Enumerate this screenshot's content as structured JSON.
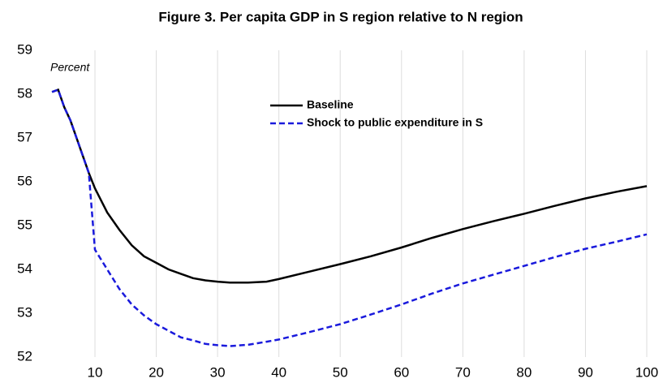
{
  "chart_data": {
    "type": "line",
    "title": "Figure 3. Per capita GDP in S region relative to N region",
    "y_label": "Percent",
    "x": [
      3,
      4,
      5,
      6,
      7,
      8,
      9,
      10,
      12,
      14,
      16,
      18,
      20,
      22,
      24,
      26,
      28,
      30,
      32,
      35,
      38,
      40,
      45,
      50,
      55,
      60,
      65,
      70,
      75,
      80,
      85,
      90,
      95,
      100
    ],
    "series": [
      {
        "name": "Baseline",
        "color": "#000000",
        "dash": false,
        "values": [
          58.05,
          58.1,
          57.7,
          57.4,
          57.0,
          56.6,
          56.2,
          55.85,
          55.3,
          54.9,
          54.55,
          54.3,
          54.15,
          54.0,
          53.9,
          53.8,
          53.75,
          53.72,
          53.7,
          53.7,
          53.72,
          53.78,
          53.95,
          54.12,
          54.3,
          54.5,
          54.72,
          54.92,
          55.1,
          55.27,
          55.45,
          55.62,
          55.77,
          55.9
        ]
      },
      {
        "name": "Shock to public expenditure in S",
        "color": "#1a1adc",
        "dash": true,
        "values": [
          58.05,
          58.1,
          57.7,
          57.4,
          57.0,
          56.6,
          56.2,
          54.45,
          54.0,
          53.55,
          53.2,
          52.95,
          52.75,
          52.6,
          52.45,
          52.38,
          52.3,
          52.27,
          52.25,
          52.28,
          52.35,
          52.4,
          52.57,
          52.75,
          52.97,
          53.2,
          53.45,
          53.68,
          53.88,
          54.08,
          54.28,
          54.47,
          54.63,
          54.8
        ]
      }
    ],
    "xlim": [
      1,
      100
    ],
    "xticks": [
      10,
      20,
      30,
      40,
      50,
      60,
      70,
      80,
      90,
      100
    ],
    "ylim": [
      52,
      59
    ],
    "yticks": [
      52,
      53,
      54,
      55,
      56,
      57,
      58,
      59
    ],
    "grid": true
  }
}
